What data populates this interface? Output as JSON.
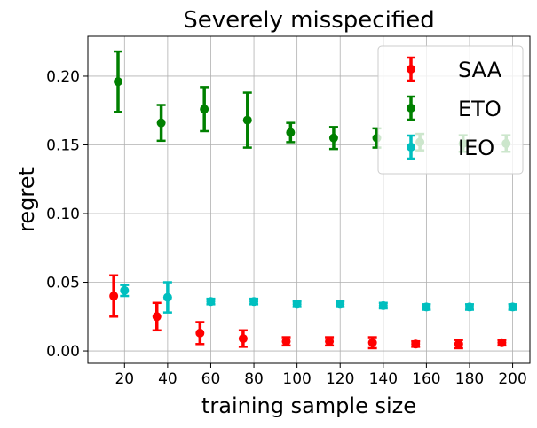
{
  "chart_data": {
    "type": "scatter",
    "title": "Severely misspecified",
    "xlabel": "training sample size",
    "ylabel": "regret",
    "xlim": [
      3,
      208
    ],
    "ylim": [
      -0.009,
      0.229
    ],
    "grid": true,
    "legend_position": "top-right",
    "xticks": [
      20,
      40,
      60,
      80,
      100,
      120,
      140,
      160,
      180,
      200
    ],
    "xtick_labels": [
      "20",
      "40",
      "60",
      "80",
      "100",
      "120",
      "140",
      "160",
      "180",
      "200"
    ],
    "yticks": [
      0.0,
      0.05,
      0.1,
      0.15,
      0.2
    ],
    "ytick_labels": [
      "0.00",
      "0.05",
      "0.10",
      "0.15",
      "0.20"
    ],
    "series": [
      {
        "name": "SAA",
        "color": "#ff0000",
        "x": [
          15,
          35,
          55,
          75,
          95,
          115,
          135,
          155,
          175,
          195
        ],
        "y": [
          0.04,
          0.025,
          0.013,
          0.009,
          0.007,
          0.007,
          0.006,
          0.005,
          0.005,
          0.006
        ],
        "err": [
          0.015,
          0.01,
          0.008,
          0.006,
          0.003,
          0.003,
          0.004,
          0.002,
          0.003,
          0.002
        ]
      },
      {
        "name": "ETO",
        "color": "#008000",
        "x": [
          17,
          37,
          57,
          77,
          97,
          117,
          137,
          157,
          177,
          197
        ],
        "y": [
          0.196,
          0.166,
          0.176,
          0.168,
          0.159,
          0.155,
          0.155,
          0.152,
          0.151,
          0.151
        ],
        "err": [
          0.022,
          0.013,
          0.016,
          0.02,
          0.007,
          0.008,
          0.007,
          0.006,
          0.006,
          0.006
        ]
      },
      {
        "name": "IEO",
        "color": "#00bfbf",
        "x": [
          20,
          40,
          60,
          80,
          100,
          120,
          140,
          160,
          180,
          200
        ],
        "y": [
          0.044,
          0.039,
          0.036,
          0.036,
          0.034,
          0.034,
          0.033,
          0.032,
          0.032,
          0.032
        ],
        "err": [
          0.004,
          0.011,
          0.002,
          0.002,
          0.002,
          0.002,
          0.002,
          0.002,
          0.002,
          0.002
        ]
      }
    ]
  }
}
